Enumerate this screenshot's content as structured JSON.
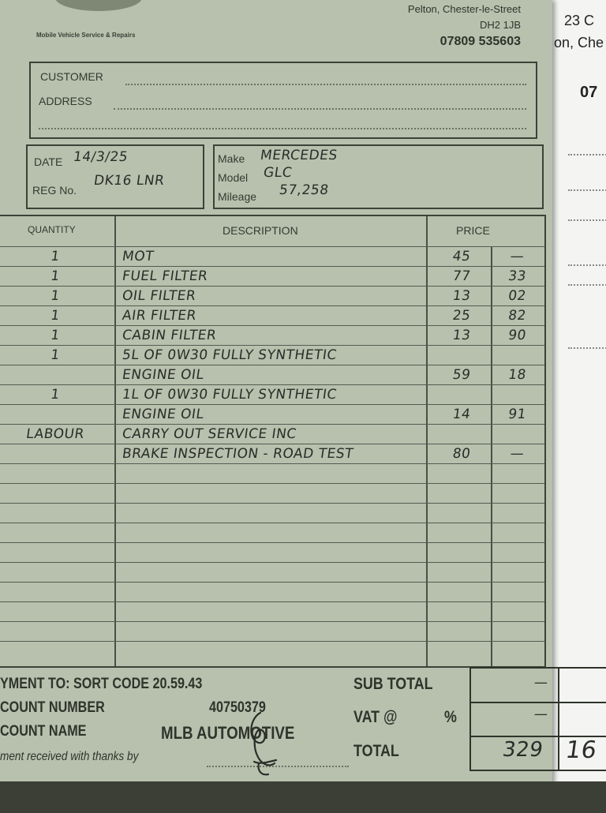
{
  "side_sheet": {
    "line1": "23 C",
    "line2": "on, Che",
    "line3": "07"
  },
  "header": {
    "tagline": "Mobile Vehicle Service & Repairs",
    "address_line1": "Pelton, Chester-le-Street",
    "address_line2": "DH2 1JB",
    "phone": "07809 535603"
  },
  "customer": {
    "customer_label": "CUSTOMER",
    "address_label": "ADDRESS"
  },
  "job": {
    "date_label": "DATE",
    "date": "14/3/25",
    "reg_label": "REG No.",
    "reg": "DK16 LNR",
    "make_label": "Make",
    "make": "MERCEDES",
    "model_label": "Model",
    "model": "GLC",
    "mileage_label": "Mileage",
    "mileage": "57,258"
  },
  "table": {
    "headers": {
      "quantity": "QUANTITY",
      "description": "DESCRIPTION",
      "price": "PRICE"
    },
    "rows": [
      {
        "qty": "1",
        "desc": "MOT",
        "pounds": "45",
        "pence": "—"
      },
      {
        "qty": "1",
        "desc": "FUEL FILTER",
        "pounds": "77",
        "pence": "33"
      },
      {
        "qty": "1",
        "desc": "OIL FILTER",
        "pounds": "13",
        "pence": "02"
      },
      {
        "qty": "1",
        "desc": "AIR FILTER",
        "pounds": "25",
        "pence": "82"
      },
      {
        "qty": "1",
        "desc": "CABIN FILTER",
        "pounds": "13",
        "pence": "90"
      },
      {
        "qty": "1",
        "desc": "5L OF 0W30 FULLY SYNTHETIC",
        "pounds": "",
        "pence": ""
      },
      {
        "qty": "",
        "desc": "ENGINE OIL",
        "pounds": "59",
        "pence": "18"
      },
      {
        "qty": "1",
        "desc": "1L OF 0W30 FULLY SYNTHETIC",
        "pounds": "",
        "pence": ""
      },
      {
        "qty": "",
        "desc": "ENGINE OIL",
        "pounds": "14",
        "pence": "91"
      },
      {
        "qty": "LABOUR",
        "desc": "CARRY OUT SERVICE INC",
        "pounds": "",
        "pence": ""
      },
      {
        "qty": "",
        "desc": "BRAKE INSPECTION - ROAD TEST",
        "pounds": "80",
        "pence": "—"
      }
    ]
  },
  "footer": {
    "payment_line": "YMENT TO: SORT CODE 20.59.43",
    "account_number_label": "COUNT NUMBER",
    "account_number": "40750379",
    "account_name_label": "COUNT NAME",
    "account_name": "MLB AUTOMOTIVE",
    "received_label": "ment received with thanks by",
    "subtotal_label": "SUB TOTAL",
    "subtotal_value": "—",
    "vat_label": "VAT @",
    "vat_pct": "%",
    "vat_value": "—",
    "total_label": "TOTAL",
    "total_pounds": "329",
    "total_pence": "16"
  }
}
